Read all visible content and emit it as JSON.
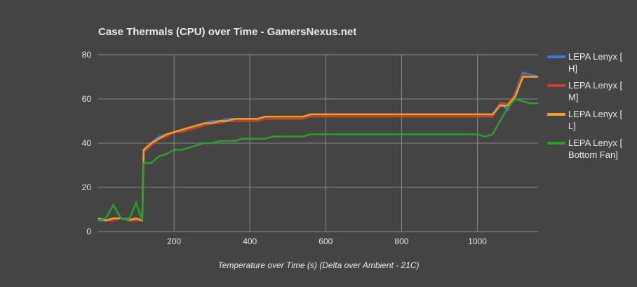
{
  "chart_data": {
    "type": "line",
    "title": "Case Thermals (CPU) over Time - GamersNexus.net",
    "x_label": "Temperature over Time (s) (Delta over Ambient - 21C)",
    "x": [
      0,
      20,
      40,
      60,
      80,
      100,
      116,
      120,
      140,
      160,
      180,
      200,
      220,
      240,
      260,
      280,
      300,
      320,
      340,
      360,
      380,
      400,
      420,
      440,
      460,
      480,
      500,
      520,
      540,
      560,
      580,
      600,
      620,
      640,
      660,
      680,
      700,
      720,
      740,
      760,
      780,
      800,
      820,
      840,
      860,
      880,
      900,
      920,
      940,
      960,
      980,
      1000,
      1020,
      1040,
      1060,
      1080,
      1100,
      1120,
      1140,
      1160
    ],
    "series": [
      {
        "name": "LEPA Lenyx [ H]",
        "color": "#3c78d8",
        "values": [
          5,
          5,
          6,
          6,
          6,
          5,
          5,
          37,
          40,
          43,
          44,
          45,
          46,
          47,
          48,
          49,
          50,
          50,
          51,
          51,
          51,
          51,
          51,
          52,
          52,
          52,
          52,
          52,
          52,
          53,
          53,
          53,
          53,
          53,
          53,
          53,
          53,
          53,
          53,
          53,
          53,
          53,
          53,
          53,
          53,
          53,
          53,
          53,
          53,
          53,
          53,
          53,
          53,
          53,
          58,
          55,
          63,
          72,
          71,
          70
        ]
      },
      {
        "name": "LEPA Lenyx [ M]",
        "color": "#cc4125",
        "values": [
          6,
          5,
          5,
          6,
          5,
          5,
          5,
          36,
          39,
          42,
          43,
          45,
          45,
          46,
          47,
          48,
          49,
          49,
          50,
          50,
          50,
          50,
          50,
          51,
          51,
          51,
          51,
          51,
          51,
          52,
          52,
          52,
          52,
          52,
          52,
          52,
          52,
          52,
          52,
          52,
          52,
          52,
          52,
          52,
          52,
          52,
          52,
          52,
          52,
          52,
          52,
          52,
          52,
          52,
          58,
          58,
          62,
          71,
          70,
          70
        ]
      },
      {
        "name": "LEPA Lenyx [ L]",
        "color": "#f6a023",
        "values": [
          6,
          5,
          6,
          6,
          5,
          6,
          5,
          37,
          40,
          42,
          44,
          45,
          46,
          47,
          48,
          49,
          49,
          50,
          50,
          51,
          51,
          51,
          51,
          52,
          52,
          52,
          52,
          52,
          52,
          53,
          53,
          53,
          53,
          53,
          53,
          53,
          53,
          53,
          53,
          53,
          53,
          53,
          53,
          53,
          53,
          53,
          53,
          53,
          53,
          53,
          53,
          53,
          53,
          53,
          57,
          57,
          61,
          70,
          70,
          70
        ]
      },
      {
        "name": "LEPA Lenyx [ Bottom Fan]",
        "color": "#2aa02a",
        "values": [
          5,
          6,
          12,
          6,
          5,
          13,
          5,
          31,
          31,
          34,
          35,
          37,
          37,
          38,
          39,
          40,
          40,
          41,
          41,
          41,
          42,
          42,
          42,
          42,
          43,
          43,
          43,
          43,
          43,
          44,
          44,
          44,
          44,
          44,
          44,
          44,
          44,
          44,
          44,
          44,
          44,
          44,
          44,
          44,
          44,
          44,
          44,
          44,
          44,
          44,
          44,
          44,
          43,
          44,
          50,
          56,
          60,
          59,
          58,
          58
        ]
      }
    ],
    "xlim": [
      0,
      1160
    ],
    "ylim": [
      0,
      80
    ],
    "xticks": [
      200,
      400,
      600,
      800,
      1000
    ],
    "yticks": [
      0,
      20,
      40,
      60,
      80
    ],
    "grid": true
  }
}
